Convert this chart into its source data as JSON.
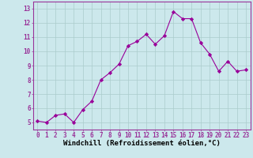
{
  "x": [
    0,
    1,
    2,
    3,
    4,
    5,
    6,
    7,
    8,
    9,
    10,
    11,
    12,
    13,
    14,
    15,
    16,
    17,
    18,
    19,
    20,
    21,
    22,
    23
  ],
  "y": [
    5.1,
    5.0,
    5.5,
    5.6,
    5.0,
    5.9,
    6.5,
    8.0,
    8.5,
    9.1,
    10.4,
    10.7,
    11.2,
    10.5,
    11.1,
    12.8,
    12.3,
    12.3,
    10.6,
    9.8,
    8.6,
    9.3,
    8.6,
    8.7
  ],
  "line_color": "#990099",
  "marker": "D",
  "marker_size": 2.2,
  "bg_color": "#cce8ec",
  "grid_color": "#aacccc",
  "xlabel": "Windchill (Refroidissement éolien,°C)",
  "xlim": [
    -0.5,
    23.5
  ],
  "ylim": [
    4.5,
    13.5
  ],
  "yticks": [
    5,
    6,
    7,
    8,
    9,
    10,
    11,
    12,
    13
  ],
  "xticks": [
    0,
    1,
    2,
    3,
    4,
    5,
    6,
    7,
    8,
    9,
    10,
    11,
    12,
    13,
    14,
    15,
    16,
    17,
    18,
    19,
    20,
    21,
    22,
    23
  ],
  "tick_label_size": 5.5,
  "xlabel_size": 6.5,
  "spine_color": "#993399",
  "line_width": 0.8
}
